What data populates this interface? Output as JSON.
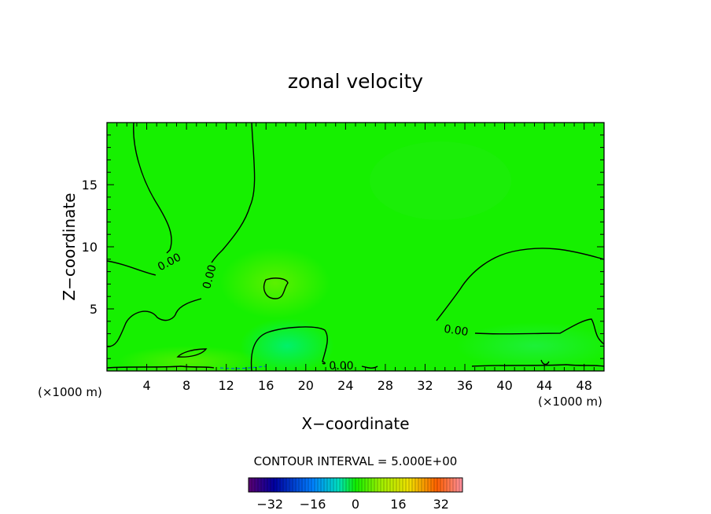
{
  "chart_data": {
    "type": "heatmap",
    "title": "zonal velocity",
    "xlabel": "X−coordinate",
    "ylabel": "Z−coordinate",
    "x_unit": "(×1000 m)",
    "xlim": [
      0,
      50
    ],
    "ylim": [
      0,
      20
    ],
    "x_ticks": [
      4,
      8,
      12,
      16,
      20,
      24,
      28,
      32,
      36,
      40,
      44,
      48
    ],
    "x_tick_labels": [
      "4",
      "8",
      "12",
      "16",
      "20",
      "24",
      "28",
      "32",
      "36",
      "40",
      "44",
      "48"
    ],
    "y_ticks": [
      5,
      10,
      15
    ],
    "y_tick_labels": [
      "5",
      "10",
      "15"
    ],
    "contour_level_label": "0.00",
    "contour_labels": [
      "0.00",
      "0.00",
      "0.00",
      "0.00"
    ],
    "contour_interval_text": "CONTOUR INTERVAL = 5.000E+00",
    "colorbar": {
      "range": [
        -40,
        40
      ],
      "ticks": [
        -32,
        -16,
        0,
        16,
        32
      ],
      "tick_labels": [
        "−32",
        "−16",
        "0",
        "16",
        "32"
      ]
    },
    "background_color": "#16f000"
  }
}
